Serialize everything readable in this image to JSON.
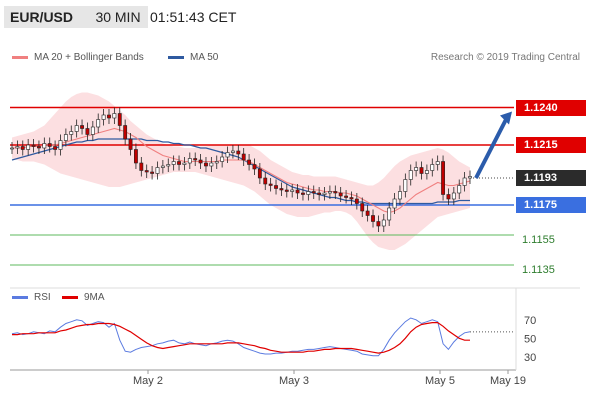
{
  "header": {
    "pair": "EUR/USD",
    "timeframe": "30 MIN",
    "time": "01:51:43 CET"
  },
  "legend": {
    "ma20_label": "MA 20 + Bollinger Bands",
    "ma50_label": "MA 50",
    "credit": "Research © 2019 Trading Central"
  },
  "rsi_legend": {
    "rsi_label": "RSI",
    "ma_label": "9MA"
  },
  "colors": {
    "ma20": "#f08080",
    "ma50": "#2f5aa0",
    "bollinger_fill": "#fcd9dc",
    "resistance": "#e00000",
    "pivot": "#3a6fe0",
    "support": "#5cb85c",
    "arrow": "#2b5cab",
    "candle": "#c00000",
    "rsi": "#5b7be0",
    "rsi_ma": "#e00000",
    "current_price_box": "#2b2b2b"
  },
  "levels": [
    {
      "value": 1.124,
      "label": "1.1240",
      "kind": "resistance"
    },
    {
      "value": 1.1215,
      "label": "1.1215",
      "kind": "resistance"
    },
    {
      "value": 1.1193,
      "label": "1.1193",
      "kind": "current"
    },
    {
      "value": 1.1175,
      "label": "1.1175",
      "kind": "pivot"
    },
    {
      "value": 1.1155,
      "label": "1.1155",
      "kind": "support"
    },
    {
      "value": 1.1135,
      "label": "1.1135",
      "kind": "support"
    }
  ],
  "chart_data": {
    "type": "line",
    "title": "EUR/USD 30 MIN",
    "x_tick_labels": [
      "May 2",
      "May 3",
      "May 5",
      "May 19"
    ],
    "price_series": {
      "name": "EUR/USD",
      "values": [
        1.1213,
        1.1214,
        1.1212,
        1.1215,
        1.1214,
        1.1213,
        1.1216,
        1.1214,
        1.1212,
        1.1218,
        1.1222,
        1.1224,
        1.1228,
        1.1226,
        1.1222,
        1.1227,
        1.1232,
        1.1235,
        1.1233,
        1.1236,
        1.1228,
        1.1219,
        1.1212,
        1.1203,
        1.1198,
        1.1197,
        1.1196,
        1.12,
        1.1201,
        1.1202,
        1.1204,
        1.1202,
        1.1203,
        1.1206,
        1.1205,
        1.1203,
        1.1201,
        1.1203,
        1.1204,
        1.1207,
        1.121,
        1.1211,
        1.1209,
        1.1205,
        1.1202,
        1.1199,
        1.1193,
        1.1189,
        1.1188,
        1.1186,
        1.1185,
        1.1184,
        1.1185,
        1.1183,
        1.1182,
        1.1184,
        1.1183,
        1.1182,
        1.1183,
        1.1184,
        1.1183,
        1.1181,
        1.118,
        1.1179,
        1.1176,
        1.1171,
        1.1168,
        1.1164,
        1.1161,
        1.1165,
        1.1173,
        1.1179,
        1.1184,
        1.1192,
        1.1198,
        1.12,
        1.1196,
        1.1198,
        1.1202,
        1.1204,
        1.1182,
        1.1179,
        1.1183,
        1.1188,
        1.1193,
        1.1194
      ]
    },
    "ma20": {
      "name": "MA 20",
      "values": [
        1.1213,
        1.1213,
        1.1213,
        1.1214,
        1.1214,
        1.1214,
        1.1215,
        1.1215,
        1.1215,
        1.1216,
        1.1217,
        1.1218,
        1.1219,
        1.122,
        1.1221,
        1.1222,
        1.1223,
        1.1224,
        1.1225,
        1.1226,
        1.1225,
        1.1224,
        1.1222,
        1.122,
        1.1217,
        1.1214,
        1.1212,
        1.121,
        1.1208,
        1.1207,
        1.1206,
        1.1205,
        1.1204,
        1.1204,
        1.1204,
        1.1204,
        1.1204,
        1.1204,
        1.1204,
        1.1205,
        1.1205,
        1.1205,
        1.1205,
        1.1205,
        1.1204,
        1.1202,
        1.12,
        1.1198,
        1.1196,
        1.1194,
        1.1192,
        1.119,
        1.1189,
        1.1188,
        1.1187,
        1.1186,
        1.1185,
        1.1185,
        1.1184,
        1.1184,
        1.1184,
        1.1183,
        1.1183,
        1.1182,
        1.1181,
        1.1179,
        1.1177,
        1.1175,
        1.1173,
        1.1171,
        1.117,
        1.1171,
        1.1173,
        1.1176,
        1.1179,
        1.1182,
        1.1184,
        1.1186,
        1.1188,
        1.119,
        1.1189,
        1.1188,
        1.1188,
        1.1189,
        1.119,
        1.1191
      ]
    },
    "ma50": {
      "name": "MA 50",
      "values": [
        1.1205,
        1.1206,
        1.1207,
        1.1208,
        1.1209,
        1.121,
        1.1211,
        1.1212,
        1.1213,
        1.1214,
        1.1215,
        1.1216,
        1.1217,
        1.1217,
        1.1218,
        1.1218,
        1.1219,
        1.1219,
        1.1219,
        1.1219,
        1.1219,
        1.1219,
        1.1219,
        1.1219,
        1.1219,
        1.1218,
        1.1218,
        1.1218,
        1.1217,
        1.1217,
        1.1216,
        1.1216,
        1.1215,
        1.1215,
        1.1214,
        1.1213,
        1.1213,
        1.1212,
        1.1211,
        1.121,
        1.1209,
        1.1208,
        1.1207,
        1.1205,
        1.1203,
        1.1201,
        1.1199,
        1.1197,
        1.1195,
        1.1193,
        1.1191,
        1.1189,
        1.1187,
        1.1186,
        1.1185,
        1.1184,
        1.1183,
        1.1182,
        1.1181,
        1.118,
        1.118,
        1.1179,
        1.1178,
        1.1178,
        1.1177,
        1.1177,
        1.1176,
        1.1176,
        1.1176,
        1.1176,
        1.1176,
        1.1176,
        1.1176,
        1.1176,
        1.1176,
        1.1176,
        1.1176,
        1.1176,
        1.1176,
        1.1177,
        1.1177,
        1.1177,
        1.1177,
        1.1178,
        1.1178,
        1.1178
      ]
    },
    "bollinger_upper": [
      1.122,
      1.1221,
      1.1222,
      1.1223,
      1.1224,
      1.1226,
      1.1228,
      1.1232,
      1.1236,
      1.124,
      1.1244,
      1.1247,
      1.1249,
      1.125,
      1.125,
      1.1249,
      1.1248,
      1.1246,
      1.1244,
      1.1241,
      1.1238,
      1.1235,
      1.1231,
      1.1228,
      1.1225,
      1.1222,
      1.122,
      1.1218,
      1.1216,
      1.1215,
      1.1214,
      1.1214,
      1.1213,
      1.1213,
      1.1213,
      1.1214,
      1.1214,
      1.1215,
      1.1215,
      1.1215,
      1.1215,
      1.1215,
      1.1215,
      1.1215,
      1.1215,
      1.1213,
      1.1211,
      1.1208,
      1.1205,
      1.1203,
      1.1201,
      1.1199,
      1.1197,
      1.1196,
      1.1195,
      1.1195,
      1.1194,
      1.1194,
      1.1194,
      1.1194,
      1.1194,
      1.1193,
      1.1192,
      1.1191,
      1.119,
      1.1189,
      1.1188,
      1.1188,
      1.119,
      1.1193,
      1.1197,
      1.1201,
      1.1204,
      1.1206,
      1.1208,
      1.1209,
      1.121,
      1.1211,
      1.1212,
      1.1213,
      1.1212,
      1.121,
      1.1207,
      1.1204,
      1.1202,
      1.12
    ],
    "bollinger_lower": [
      1.1206,
      1.1205,
      1.1204,
      1.1204,
      1.1204,
      1.1203,
      1.1202,
      1.12,
      1.1198,
      1.1196,
      1.1195,
      1.1194,
      1.1193,
      1.1192,
      1.1191,
      1.119,
      1.1189,
      1.1188,
      1.1187,
      1.1187,
      1.1187,
      1.1188,
      1.1189,
      1.119,
      1.1191,
      1.1192,
      1.1193,
      1.1194,
      1.1195,
      1.1196,
      1.1197,
      1.1197,
      1.1197,
      1.1197,
      1.1197,
      1.1196,
      1.1195,
      1.1194,
      1.1193,
      1.1192,
      1.1191,
      1.119,
      1.1189,
      1.1188,
      1.1186,
      1.1184,
      1.1181,
      1.1178,
      1.1175,
      1.1173,
      1.1171,
      1.1169,
      1.1168,
      1.1167,
      1.1167,
      1.1167,
      1.1168,
      1.1169,
      1.117,
      1.117,
      1.1171,
      1.1171,
      1.117,
      1.1168,
      1.1164,
      1.1159,
      1.1154,
      1.115,
      1.1147,
      1.1146,
      1.1145,
      1.1145,
      1.1147,
      1.1149,
      1.1152,
      1.1155,
      1.1158,
      1.1161,
      1.1164,
      1.1167,
      1.1168,
      1.1169,
      1.117,
      1.1171,
      1.1172,
      1.1173
    ],
    "forecast_arrow": {
      "from": 1.1193,
      "to": 1.124
    },
    "ylim": [
      1.1125,
      1.1265
    ],
    "rsi": {
      "name": "RSI",
      "values": [
        55,
        56,
        54,
        55,
        57,
        56,
        55,
        58,
        57,
        62,
        66,
        68,
        70,
        69,
        64,
        66,
        68,
        67,
        62,
        66,
        48,
        36,
        35,
        38,
        40,
        41,
        42,
        44,
        45,
        47,
        48,
        45,
        44,
        46,
        44,
        43,
        42,
        44,
        45,
        47,
        48,
        47,
        44,
        40,
        38,
        36,
        34,
        33,
        33,
        34,
        34,
        35,
        36,
        36,
        37,
        38,
        38,
        39,
        40,
        41,
        40,
        39,
        38,
        37,
        36,
        33,
        32,
        31,
        31,
        38,
        48,
        56,
        62,
        68,
        72,
        70,
        66,
        68,
        70,
        68,
        44,
        38,
        46,
        52,
        56,
        57
      ],
      "ylim": [
        20,
        85
      ],
      "ticks": [
        30,
        50,
        70
      ]
    },
    "rsi_ma": {
      "name": "9MA",
      "values": [
        54,
        54,
        55,
        55,
        55,
        56,
        56,
        56,
        56,
        58,
        59,
        61,
        63,
        64,
        65,
        65,
        66,
        66,
        66,
        65,
        63,
        60,
        57,
        53,
        49,
        45,
        42,
        40,
        39,
        40,
        41,
        42,
        43,
        44,
        44,
        44,
        44,
        44,
        44,
        44,
        45,
        45,
        45,
        44,
        43,
        42,
        40,
        39,
        37,
        36,
        35,
        35,
        35,
        35,
        35,
        36,
        36,
        37,
        38,
        38,
        39,
        39,
        39,
        39,
        38,
        37,
        36,
        35,
        34,
        35,
        37,
        40,
        44,
        50,
        57,
        62,
        65,
        66,
        67,
        67,
        63,
        58,
        54,
        50,
        48,
        48
      ]
    }
  }
}
